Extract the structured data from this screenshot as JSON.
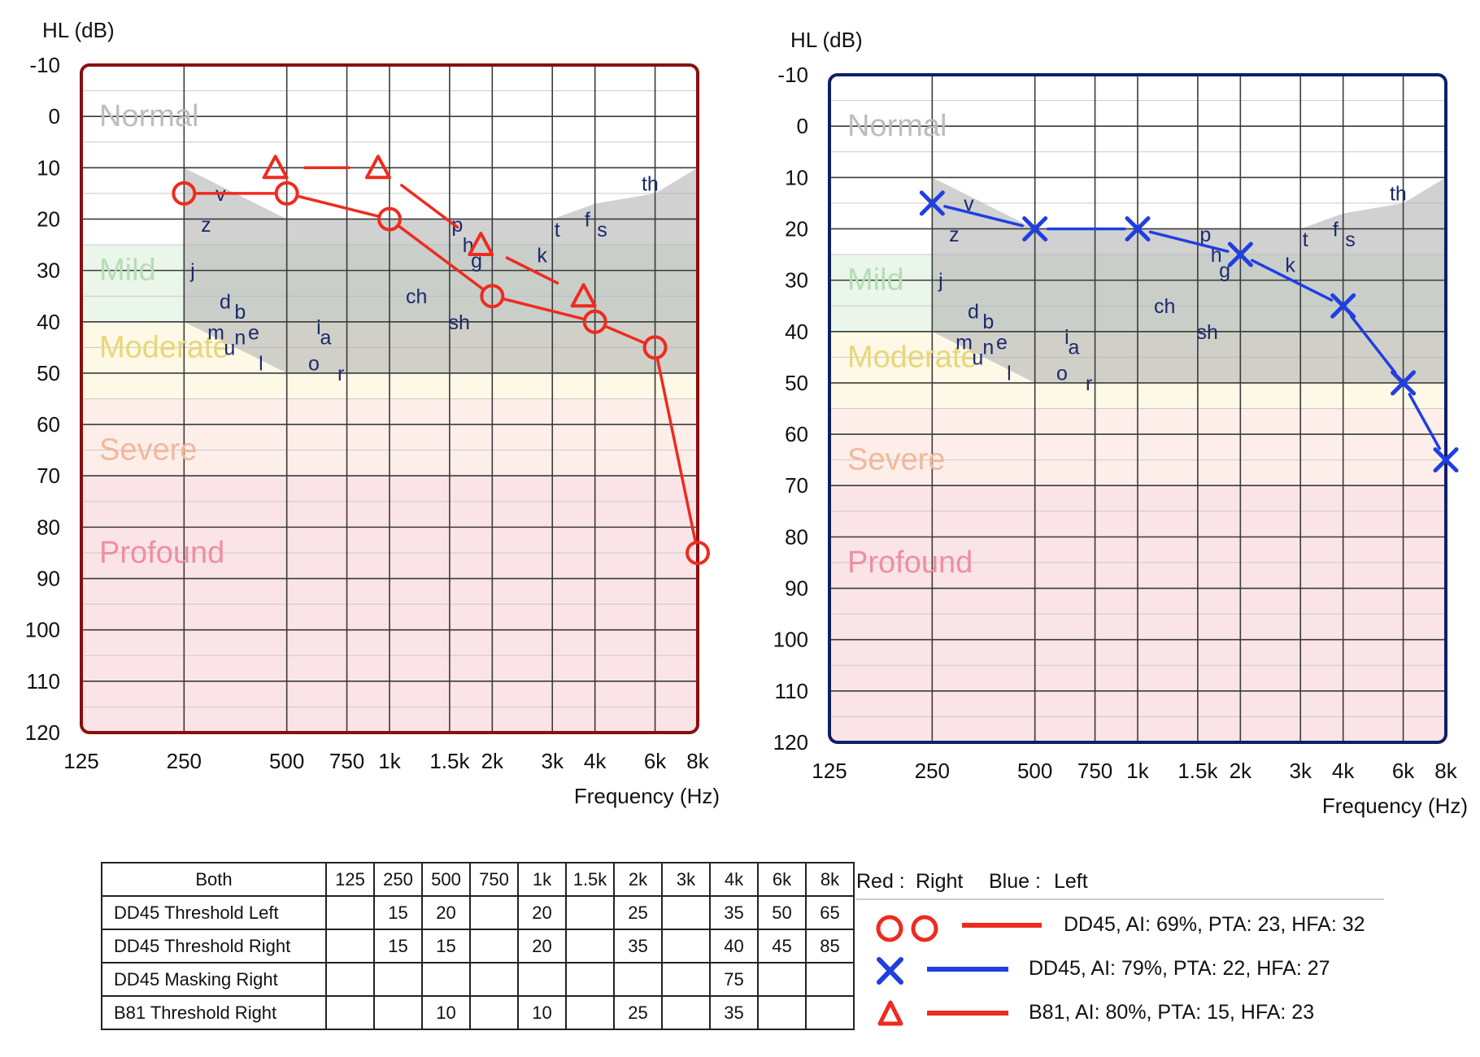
{
  "colors": {
    "right": "#ee2b1f",
    "left": "#1f3fe0",
    "right_frame": "#8a0f0f",
    "left_frame": "#0f1f66",
    "normal": "#bdbdbd",
    "mild": "#b5ddb5",
    "moderate": "#e8d67a",
    "severe": "#f2b89a",
    "profound": "#ee8fa0",
    "speech_banana": "#b5b5b5",
    "phoneme": "#1b2a6b"
  },
  "chart_data": [
    {
      "type": "line",
      "side": "Right",
      "ylabel": "HL (dB)",
      "xlabel": "Frequency (Hz)",
      "ylim": [
        -10,
        120
      ],
      "y_ticks": [
        -10,
        0,
        10,
        20,
        30,
        40,
        50,
        60,
        70,
        80,
        90,
        100,
        110,
        120
      ],
      "x_scale": "log",
      "x_ticks": [
        125,
        250,
        500,
        750,
        1000,
        1500,
        2000,
        3000,
        4000,
        6000,
        8000
      ],
      "x_tick_labels": [
        "125",
        "250",
        "500",
        "750",
        "1k",
        "1.5k",
        "2k",
        "3k",
        "4k",
        "6k",
        "8k"
      ],
      "bands": [
        {
          "name": "Normal",
          "from": -10,
          "to": 25
        },
        {
          "name": "Mild",
          "from": 25,
          "to": 40
        },
        {
          "name": "Moderate",
          "from": 40,
          "to": 55
        },
        {
          "name": "Severe",
          "from": 55,
          "to": 70
        },
        {
          "name": "Profound",
          "from": 70,
          "to": 120
        }
      ],
      "series": [
        {
          "marker": "circle",
          "x": [
            250,
            500,
            1000,
            2000,
            4000,
            6000,
            8000
          ],
          "y": [
            15,
            15,
            20,
            35,
            40,
            45,
            85
          ]
        },
        {
          "marker": "triangle",
          "x": [
            500,
            1000,
            2000,
            4000
          ],
          "y": [
            10,
            10,
            25,
            35
          ]
        }
      ]
    },
    {
      "type": "line",
      "side": "Left",
      "ylabel": "HL (dB)",
      "xlabel": "Frequency (Hz)",
      "ylim": [
        -10,
        120
      ],
      "y_ticks": [
        -10,
        0,
        10,
        20,
        30,
        40,
        50,
        60,
        70,
        80,
        90,
        100,
        110,
        120
      ],
      "x_scale": "log",
      "x_ticks": [
        125,
        250,
        500,
        750,
        1000,
        1500,
        2000,
        3000,
        4000,
        6000,
        8000
      ],
      "x_tick_labels": [
        "125",
        "250",
        "500",
        "750",
        "1k",
        "1.5k",
        "2k",
        "3k",
        "4k",
        "6k",
        "8k"
      ],
      "series": [
        {
          "marker": "x",
          "x": [
            250,
            500,
            1000,
            2000,
            4000,
            6000,
            8000
          ],
          "y": [
            15,
            20,
            20,
            25,
            35,
            50,
            65
          ]
        }
      ]
    }
  ],
  "speech_banana": {
    "upper": [
      [
        250,
        10
      ],
      [
        500,
        20
      ],
      [
        1000,
        20
      ],
      [
        2000,
        20
      ],
      [
        3000,
        20
      ],
      [
        4000,
        17
      ],
      [
        6000,
        15
      ],
      [
        8000,
        10
      ]
    ],
    "lower": [
      [
        8000,
        50
      ],
      [
        6000,
        50
      ],
      [
        4000,
        50
      ],
      [
        2000,
        50
      ],
      [
        1000,
        50
      ],
      [
        500,
        50
      ],
      [
        250,
        40
      ]
    ]
  },
  "phonemes": [
    {
      "t": "v",
      "f": 320,
      "db": 15
    },
    {
      "t": "z",
      "f": 290,
      "db": 21
    },
    {
      "t": "j",
      "f": 265,
      "db": 30
    },
    {
      "t": "d",
      "f": 330,
      "db": 36
    },
    {
      "t": "b",
      "f": 365,
      "db": 38
    },
    {
      "t": "m",
      "f": 310,
      "db": 42
    },
    {
      "t": "n",
      "f": 365,
      "db": 43
    },
    {
      "t": "e",
      "f": 400,
      "db": 42
    },
    {
      "t": "u",
      "f": 340,
      "db": 45
    },
    {
      "t": "l",
      "f": 420,
      "db": 48
    },
    {
      "t": "i",
      "f": 620,
      "db": 41
    },
    {
      "t": "a",
      "f": 650,
      "db": 43
    },
    {
      "t": "o",
      "f": 600,
      "db": 48
    },
    {
      "t": "r",
      "f": 720,
      "db": 50
    },
    {
      "t": "ch",
      "f": 1200,
      "db": 35
    },
    {
      "t": "sh",
      "f": 1600,
      "db": 40
    },
    {
      "t": "p",
      "f": 1580,
      "db": 21
    },
    {
      "t": "h",
      "f": 1700,
      "db": 25
    },
    {
      "t": "g",
      "f": 1800,
      "db": 28
    },
    {
      "t": "k",
      "f": 2800,
      "db": 27
    },
    {
      "t": "t",
      "f": 3100,
      "db": 22
    },
    {
      "t": "f",
      "f": 3800,
      "db": 20
    },
    {
      "t": "s",
      "f": 4200,
      "db": 22
    },
    {
      "t": "th",
      "f": 5800,
      "db": 13
    }
  ],
  "legend": {
    "red_label": "Red :",
    "right_label": "Right",
    "blue_label": "Blue :",
    "left_label": "Left",
    "entries": [
      {
        "text": "DD45, AI: 69%, PTA: 23, HFA: 32"
      },
      {
        "text": "DD45, AI: 79%, PTA: 22, HFA: 27"
      },
      {
        "text": "B81, AI: 80%, PTA: 15, HFA: 23"
      }
    ]
  },
  "table": {
    "corner": "Both",
    "headers": [
      "125",
      "250",
      "500",
      "750",
      "1k",
      "1.5k",
      "2k",
      "3k",
      "4k",
      "6k",
      "8k"
    ],
    "rows": [
      {
        "label": "DD45 Threshold Left",
        "cells": [
          "",
          "15",
          "20",
          "",
          "20",
          "",
          "25",
          "",
          "35",
          "50",
          "65"
        ]
      },
      {
        "label": "DD45 Threshold Right",
        "cells": [
          "",
          "15",
          "15",
          "",
          "20",
          "",
          "35",
          "",
          "40",
          "45",
          "85"
        ]
      },
      {
        "label": "DD45 Masking Right",
        "cells": [
          "",
          "",
          "",
          "",
          "",
          "",
          "",
          "",
          "75",
          "",
          ""
        ]
      },
      {
        "label": "B81 Threshold Right",
        "cells": [
          "",
          "",
          "10",
          "",
          "10",
          "",
          "25",
          "",
          "35",
          "",
          ""
        ]
      }
    ]
  }
}
